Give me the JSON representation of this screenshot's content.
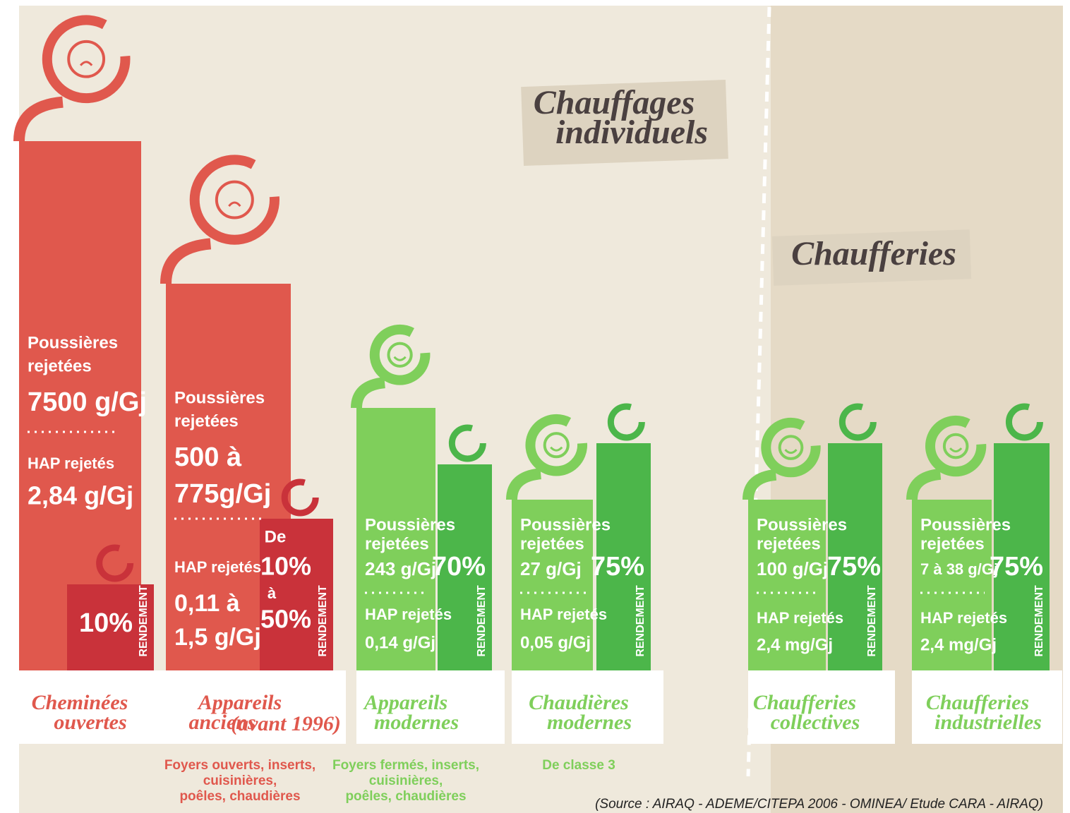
{
  "sections": [
    {
      "title": [
        "Chauffages",
        "individuels"
      ]
    },
    {
      "title": [
        "Chaufferies"
      ]
    }
  ],
  "items": [
    {
      "name": [
        "Cheminées",
        "ouvertes"
      ],
      "dust_label": [
        "Poussières",
        "rejetées"
      ],
      "dust": [
        "7500 g/Gj"
      ],
      "hap_label": "HAP rejetés",
      "hap": [
        "2,84 g/Gj"
      ],
      "yield": [
        "10%"
      ],
      "yield_label": "RENDEMENT"
    },
    {
      "name": [
        "Appareils",
        "anciens"
      ],
      "name_note": "(avant 1996)",
      "dust_label": [
        "Poussières",
        "rejetées"
      ],
      "dust": [
        "500 à",
        "775g/Gj"
      ],
      "hap_label": "HAP rejetés",
      "hap": [
        "0,11 à",
        "1,5 g/Gj"
      ],
      "yield": [
        "De",
        "10%",
        "à",
        "50%"
      ],
      "yield_label": "RENDEMENT",
      "note": [
        "Foyers ouverts, inserts,",
        "cuisinières,",
        "poêles, chaudières"
      ]
    },
    {
      "name": [
        "Appareils",
        "modernes"
      ],
      "dust_label": [
        "Poussières",
        "rejetées"
      ],
      "dust": [
        "243 g/Gj"
      ],
      "hap_label": "HAP rejetés",
      "hap": [
        "0,14 g/Gj"
      ],
      "yield": [
        "70%"
      ],
      "yield_label": "RENDEMENT",
      "note": [
        "Foyers fermés, inserts,",
        "cuisinières,",
        "poêles, chaudières"
      ]
    },
    {
      "name": [
        "Chaudières",
        "modernes"
      ],
      "dust_label": [
        "Poussières",
        "rejetées"
      ],
      "dust": [
        "27 g/Gj"
      ],
      "hap_label": "HAP rejetés",
      "hap": [
        "0,05 g/Gj"
      ],
      "yield": [
        "75%"
      ],
      "yield_label": "RENDEMENT",
      "note": [
        "De classe 3"
      ]
    },
    {
      "name": [
        "Chaufferies",
        "collectives"
      ],
      "dust_label": [
        "Poussières",
        "rejetées"
      ],
      "dust": [
        "100 g/Gj"
      ],
      "hap_label": "HAP rejetés",
      "hap": [
        "2,4 mg/Gj"
      ],
      "yield": [
        "75%"
      ],
      "yield_label": "RENDEMENT"
    },
    {
      "name": [
        "Chaufferies",
        "industrielles"
      ],
      "dust_label": [
        "Poussières",
        "rejetées"
      ],
      "dust": [
        "7 à 38 g/Gj"
      ],
      "hap_label": "HAP rejetés",
      "hap": [
        "2,4 mg/Gj"
      ],
      "yield": [
        "75%"
      ],
      "yield_label": "RENDEMENT"
    }
  ],
  "source": "(Source : AIRAQ - ADEME/CITEPA 2006 -  OMINEA/ Etude CARA - AIRAQ)"
}
